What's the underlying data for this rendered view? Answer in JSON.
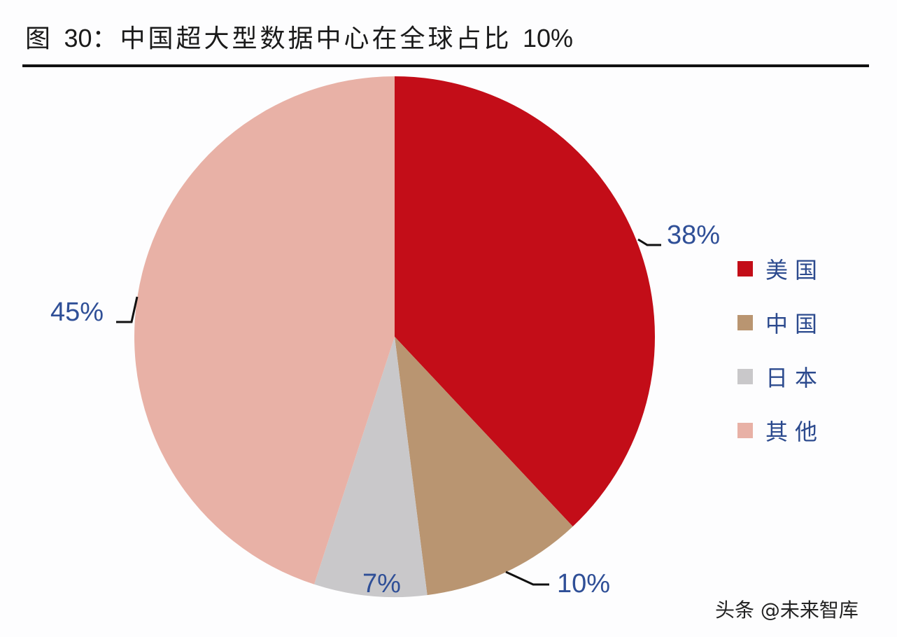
{
  "title": {
    "prefix": "图 ",
    "number": "30",
    "text": "：中国超大型数据中心在全球占比 ",
    "value": "10%"
  },
  "watermark": "头条 @未来智库",
  "colors": {
    "usa": "#c30d18",
    "china": "#b99571",
    "japan": "#c9c8ca",
    "other": "#e8b1a6",
    "label_text": "#2f4f97"
  },
  "legend": [
    {
      "label": "美国",
      "color": "#c30d18"
    },
    {
      "label": "中国",
      "color": "#b99571"
    },
    {
      "label": "日本",
      "color": "#c9c8ca"
    },
    {
      "label": "其他",
      "color": "#e8b1a6"
    }
  ],
  "labels": {
    "usa": "38%",
    "china": "10%",
    "japan": "7%",
    "other": "45%"
  },
  "chart_data": {
    "type": "pie",
    "title": "图30：中国超大型数据中心在全球占比 10%",
    "categories": [
      "美国",
      "中国",
      "日本",
      "其他"
    ],
    "values": [
      38,
      10,
      7,
      45
    ],
    "unit": "%",
    "start_angle": "12 o'clock, clockwise",
    "legend_position": "right",
    "data_labels": [
      "38%",
      "10%",
      "7%",
      "45%"
    ]
  }
}
